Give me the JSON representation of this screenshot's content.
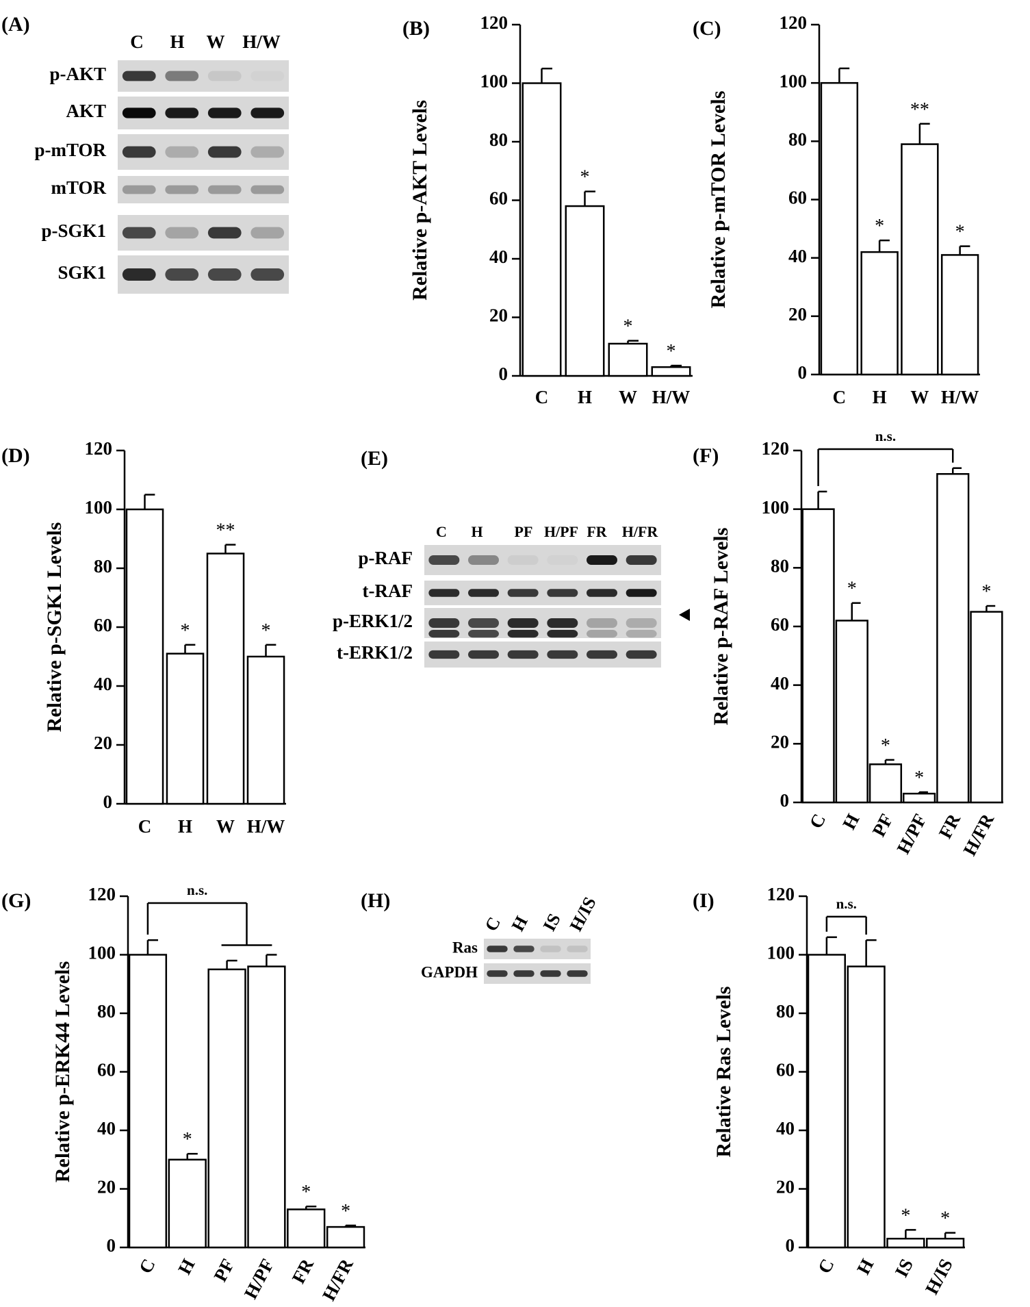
{
  "colors": {
    "bar_fill": "#ffffff",
    "ink": "#000000",
    "blot_bg": "#d8d8d8"
  },
  "blots": {
    "A": {
      "letter": "(A)",
      "lanes": [
        "C",
        "H",
        "W",
        "H/W"
      ],
      "rows": [
        {
          "label": "p-AKT",
          "intensity": [
            0.85,
            0.6,
            0.15,
            0.05
          ]
        },
        {
          "label": "AKT",
          "intensity": [
            1.0,
            0.95,
            0.95,
            0.95
          ]
        },
        {
          "label": "p-mTOR",
          "intensity": [
            0.85,
            0.35,
            0.85,
            0.35
          ]
        },
        {
          "label": "mTOR",
          "intensity": [
            0.45,
            0.45,
            0.45,
            0.45
          ]
        },
        {
          "label": "p-SGK1",
          "intensity": [
            0.8,
            0.4,
            0.85,
            0.4
          ]
        },
        {
          "label": "SGK1",
          "intensity": [
            0.9,
            0.8,
            0.8,
            0.8
          ]
        }
      ]
    },
    "E": {
      "letter": "(E)",
      "lanes": [
        "C",
        "H",
        "PF",
        "H/PF",
        "FR",
        "H/FR"
      ],
      "rows": [
        {
          "label": "p-RAF",
          "intensity": [
            0.8,
            0.55,
            0.1,
            0.05,
            0.95,
            0.85
          ]
        },
        {
          "label": "t-RAF",
          "intensity": [
            0.9,
            0.9,
            0.85,
            0.85,
            0.9,
            0.95
          ]
        },
        {
          "label": "p-ERK1/2",
          "intensity": [
            0.85,
            0.8,
            0.9,
            0.9,
            0.4,
            0.35
          ]
        },
        {
          "label": "t-ERK1/2",
          "intensity": [
            0.85,
            0.85,
            0.85,
            0.85,
            0.85,
            0.85
          ]
        }
      ]
    },
    "H": {
      "letter": "(H)",
      "lanes": [
        "C",
        "H",
        "IS",
        "H/IS"
      ],
      "rows": [
        {
          "label": "Ras",
          "intensity": [
            0.85,
            0.8,
            0.2,
            0.2
          ]
        },
        {
          "label": "GAPDH",
          "intensity": [
            0.85,
            0.85,
            0.85,
            0.85
          ]
        }
      ]
    }
  },
  "chart_data": [
    {
      "panel": "B",
      "letter": "(B)",
      "type": "bar",
      "categories": [
        "C",
        "H",
        "W",
        "H/W"
      ],
      "values": [
        100,
        58,
        11,
        3
      ],
      "errors": [
        5,
        5,
        1,
        0.5
      ],
      "significance": [
        "",
        "*",
        "*",
        "*"
      ],
      "ylabel": "Relative  p-AKT  Levels",
      "ylim": [
        0,
        120
      ],
      "yticks": [
        0,
        20,
        40,
        60,
        80,
        100,
        120
      ],
      "rotated_labels": false
    },
    {
      "panel": "C",
      "letter": "(C)",
      "type": "bar",
      "categories": [
        "C",
        "H",
        "W",
        "H/W"
      ],
      "values": [
        100,
        42,
        79,
        41
      ],
      "errors": [
        5,
        4,
        7,
        3
      ],
      "significance": [
        "",
        "*",
        "**",
        "*"
      ],
      "ylabel": "Relative  p-mTOR  Levels",
      "ylim": [
        0,
        120
      ],
      "yticks": [
        0,
        20,
        40,
        60,
        80,
        100,
        120
      ],
      "rotated_labels": false
    },
    {
      "panel": "D",
      "letter": "(D)",
      "type": "bar",
      "categories": [
        "C",
        "H",
        "W",
        "H/W"
      ],
      "values": [
        100,
        51,
        85,
        50
      ],
      "errors": [
        5,
        3,
        3,
        4
      ],
      "significance": [
        "",
        "*",
        "**",
        "*"
      ],
      "ylabel": "Relative  p-SGK1  Levels",
      "ylim": [
        0,
        120
      ],
      "yticks": [
        0,
        20,
        40,
        60,
        80,
        100,
        120
      ],
      "rotated_labels": false
    },
    {
      "panel": "F",
      "letter": "(F)",
      "type": "bar",
      "categories": [
        "C",
        "H",
        "PF",
        "H/PF",
        "FR",
        "H/FR"
      ],
      "values": [
        100,
        62,
        13,
        3,
        112,
        65
      ],
      "errors": [
        6,
        6,
        1.5,
        0.5,
        2,
        2
      ],
      "significance": [
        "",
        "*",
        "*",
        "*",
        "",
        "*"
      ],
      "ylabel": "Relative  p-RAF  Levels",
      "ylim": [
        0,
        120
      ],
      "yticks": [
        0,
        20,
        40,
        60,
        80,
        100,
        120
      ],
      "rotated_labels": true,
      "bracket": {
        "label": "n.s.",
        "from": 0,
        "to": 4
      }
    },
    {
      "panel": "G",
      "letter": "(G)",
      "type": "bar",
      "categories": [
        "C",
        "H",
        "PF",
        "H/PF",
        "FR",
        "H/FR"
      ],
      "values": [
        100,
        30,
        95,
        96,
        13,
        7
      ],
      "errors": [
        5,
        2,
        3,
        4,
        1,
        0.5
      ],
      "significance": [
        "",
        "*",
        "",
        "",
        "*",
        "*"
      ],
      "ylabel": "Relative  p-ERK44  Levels",
      "ylim": [
        0,
        120
      ],
      "yticks": [
        0,
        20,
        40,
        60,
        80,
        100,
        120
      ],
      "rotated_labels": true,
      "bracket": {
        "label": "n.s.",
        "from": 0,
        "to": 2.5,
        "to_span": [
          2,
          3
        ]
      }
    },
    {
      "panel": "I",
      "letter": "(I)",
      "type": "bar",
      "categories": [
        "C",
        "H",
        "IS",
        "H/IS"
      ],
      "values": [
        100,
        96,
        3,
        3
      ],
      "errors": [
        6,
        9,
        3,
        2
      ],
      "significance": [
        "",
        "",
        "*",
        "*"
      ],
      "ylabel": "Relative  Ras  Levels",
      "ylim": [
        0,
        120
      ],
      "yticks": [
        0,
        20,
        40,
        60,
        80,
        100,
        120
      ],
      "rotated_labels": true,
      "bracket": {
        "label": "n.s.",
        "from": 0,
        "to": 1
      }
    }
  ]
}
